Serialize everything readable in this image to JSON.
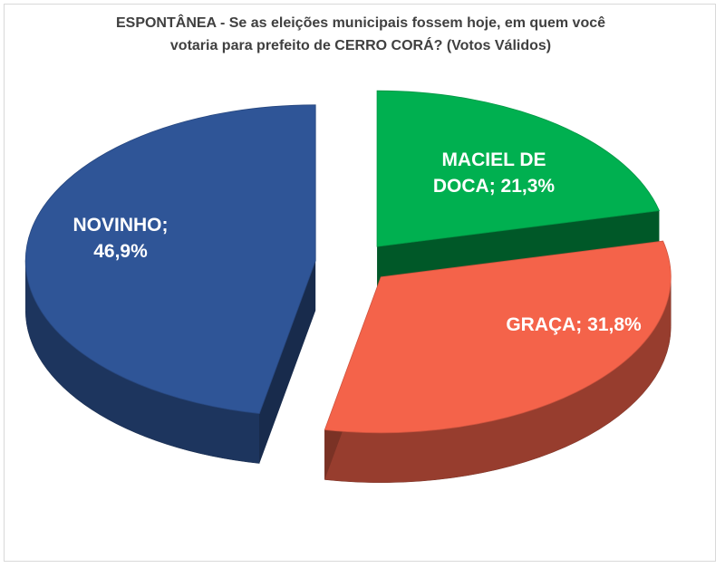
{
  "title_lines": [
    "ESPONTÂNEA  - Se as eleições municipais  fossem hoje,  em quem você",
    "votaria  para  prefeito de CERRO CORÁ? (Votos Válidos)"
  ],
  "chart_data": {
    "type": "pie",
    "title": "ESPONTÂNEA  - Se as eleições municipais  fossem hoje,  em quem você votaria  para  prefeito de CERRO CORÁ? (Votos Válidos)",
    "style": "3d-exploded",
    "legend": "none",
    "slices": [
      {
        "name": "MACIEL DE DOCA",
        "value": 21.3,
        "label_lines": [
          "MACIEL DE",
          "DOCA; 21,3%"
        ],
        "color": "#00B050",
        "text_color": "#ffffff"
      },
      {
        "name": "GRAÇA",
        "value": 31.8,
        "label_lines": [
          "GRAÇA; 31,8%"
        ],
        "color": "#F4634A",
        "text_color": "#ffffff"
      },
      {
        "name": "NOVINHO",
        "value": 46.9,
        "label_lines": [
          "NOVINHO;",
          "46,9%"
        ],
        "color": "#2F5597",
        "text_color": "#ffffff"
      }
    ]
  }
}
